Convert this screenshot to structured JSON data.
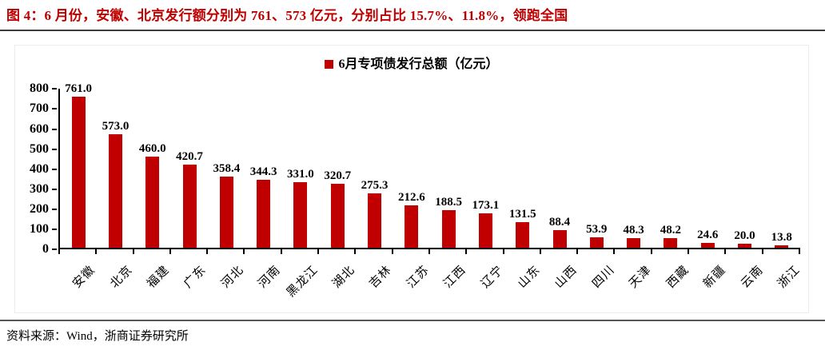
{
  "figure": {
    "caption": "图  4：6 月份，安徽、北京发行额分别为 761、573 亿元，分别占比 15.7%、11.8%，领跑全国",
    "source_note": "资料来源：Wind，浙商证券研究所"
  },
  "colors": {
    "accent_red": "#C00000",
    "caption_red": "#BE0000",
    "axis_black": "#000000",
    "caption_rule_gray": "#3d3d3d",
    "source_rule_gray": "#565656",
    "chart_border_gray": "#ececec"
  },
  "chart_data": {
    "type": "bar",
    "title": "",
    "legend": [
      "6月专项债发行总额（亿元）"
    ],
    "legend_position": "top-center",
    "categories": [
      "安徽",
      "北京",
      "福建",
      "广东",
      "河北",
      "河南",
      "黑龙江",
      "湖北",
      "吉林",
      "江苏",
      "江西",
      "辽宁",
      "山东",
      "山西",
      "四川",
      "天津",
      "西藏",
      "新疆",
      "云南",
      "浙江"
    ],
    "values": [
      761.0,
      573.0,
      460.0,
      420.7,
      358.4,
      344.3,
      331.0,
      320.7,
      275.3,
      212.6,
      188.5,
      173.1,
      131.5,
      88.4,
      53.9,
      48.3,
      48.2,
      24.6,
      20.0,
      13.8
    ],
    "value_labels": [
      "761.0",
      "573.0",
      "460.0",
      "420.7",
      "358.4",
      "344.3",
      "331.0",
      "320.7",
      "275.3",
      "212.6",
      "188.5",
      "173.1",
      "131.5",
      "88.4",
      "53.9",
      "48.3",
      "48.2",
      "24.6",
      "20.0",
      "13.8"
    ],
    "ylim": [
      0,
      800
    ],
    "ytick_step": 100,
    "ytick_labels": [
      "800",
      "700",
      "600",
      "500",
      "400",
      "300",
      "200",
      "100",
      "0"
    ],
    "grid": false,
    "bar_color": "#C00000",
    "xlabel": "",
    "ylabel": ""
  }
}
